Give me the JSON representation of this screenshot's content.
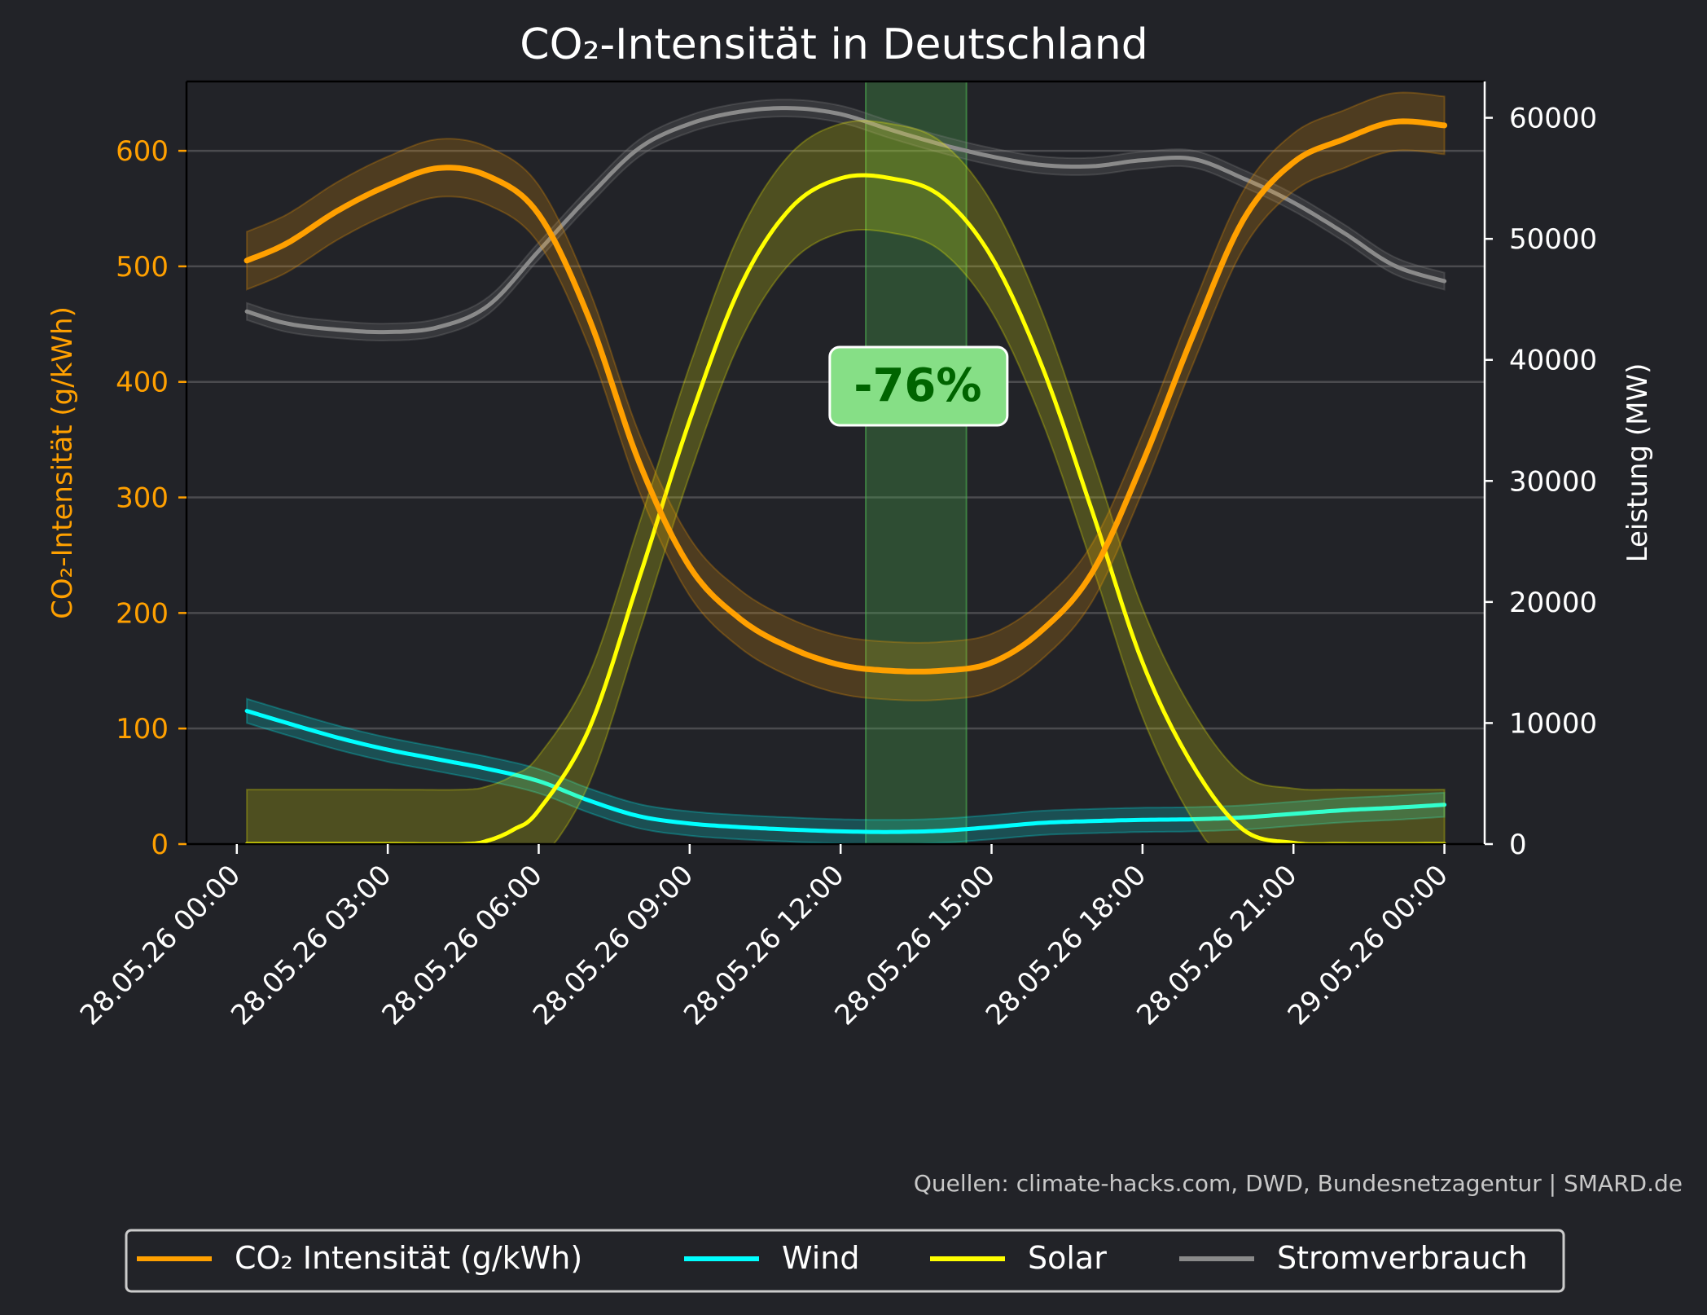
{
  "colors": {
    "background": "#222328",
    "co2": "#ffa000",
    "wind": "#00ffff",
    "solar": "#ffff00",
    "consumption": "#8a8a8a",
    "highlight": "#4caf50",
    "badge_fill": "#86df86",
    "badge_text": "#006400",
    "text": "#ffffff",
    "source_text": "#c8c8c8"
  },
  "chart_data": {
    "type": "line",
    "title": "CO₂-Intensität in Deutschland",
    "ylabel_left": "CO₂-Intensität (g/kWh)",
    "ylabel_right": "Leistung (MW)",
    "ylim_left": [
      0,
      660
    ],
    "ylim_right": [
      0,
      63000
    ],
    "xlim_hours": [
      -1.0,
      24.8
    ],
    "yticks_left": [
      0,
      100,
      200,
      300,
      400,
      500,
      600
    ],
    "yticks_right": [
      0,
      10000,
      20000,
      30000,
      40000,
      50000,
      60000
    ],
    "xticks": [
      {
        "hour": 0,
        "label": "28.05.26 00:00"
      },
      {
        "hour": 3,
        "label": "28.05.26 03:00"
      },
      {
        "hour": 6,
        "label": "28.05.26 06:00"
      },
      {
        "hour": 9,
        "label": "28.05.26 09:00"
      },
      {
        "hour": 12,
        "label": "28.05.26 12:00"
      },
      {
        "hour": 15,
        "label": "28.05.26 15:00"
      },
      {
        "hour": 18,
        "label": "28.05.26 18:00"
      },
      {
        "hour": 21,
        "label": "28.05.26 21:00"
      },
      {
        "hour": 24,
        "label": "29.05.26 00:00"
      }
    ],
    "grid": true,
    "legend": "bottom-center",
    "highlight_band_hours": [
      12.5,
      14.5
    ],
    "annotation": "-76%",
    "source": "Quellen: climate-hacks.com, DWD, Bundesnetzagentur | SMARD.de",
    "series": [
      {
        "name": "CO₂ Intensität (g/kWh)",
        "axis": "left",
        "color_key": "co2",
        "band": 25,
        "points": [
          [
            0.2,
            505
          ],
          [
            1,
            520
          ],
          [
            2,
            548
          ],
          [
            3,
            570
          ],
          [
            4,
            585
          ],
          [
            5,
            578
          ],
          [
            6,
            545
          ],
          [
            7,
            455
          ],
          [
            8,
            330
          ],
          [
            9,
            240
          ],
          [
            10,
            195
          ],
          [
            11,
            170
          ],
          [
            12,
            155
          ],
          [
            13,
            150
          ],
          [
            14,
            150
          ],
          [
            15,
            157
          ],
          [
            16,
            185
          ],
          [
            17,
            235
          ],
          [
            18,
            330
          ],
          [
            19,
            440
          ],
          [
            20,
            540
          ],
          [
            21,
            590
          ],
          [
            22,
            610
          ],
          [
            23,
            625
          ],
          [
            24,
            622
          ]
        ]
      },
      {
        "name": "Wind",
        "axis": "right",
        "color_key": "wind",
        "band": 1000,
        "points": [
          [
            0.2,
            11000
          ],
          [
            1,
            10000
          ],
          [
            2,
            8800
          ],
          [
            3,
            7800
          ],
          [
            4,
            7000
          ],
          [
            5,
            6200
          ],
          [
            6,
            5200
          ],
          [
            7,
            3600
          ],
          [
            8,
            2300
          ],
          [
            9,
            1700
          ],
          [
            10,
            1400
          ],
          [
            11,
            1200
          ],
          [
            12,
            1050
          ],
          [
            13,
            1000
          ],
          [
            14,
            1100
          ],
          [
            15,
            1400
          ],
          [
            16,
            1750
          ],
          [
            17,
            1900
          ],
          [
            18,
            2000
          ],
          [
            19,
            2050
          ],
          [
            20,
            2200
          ],
          [
            21,
            2500
          ],
          [
            22,
            2800
          ],
          [
            23,
            3000
          ],
          [
            24,
            3250
          ]
        ]
      },
      {
        "name": "Solar",
        "axis": "right",
        "color_key": "solar",
        "band": 4500,
        "points": [
          [
            0.2,
            0
          ],
          [
            3,
            0
          ],
          [
            4.5,
            0
          ],
          [
            5,
            300
          ],
          [
            5.5,
            1200
          ],
          [
            6,
            2800
          ],
          [
            7,
            9500
          ],
          [
            8,
            22000
          ],
          [
            9,
            35000
          ],
          [
            10,
            46000
          ],
          [
            11,
            52500
          ],
          [
            12,
            55000
          ],
          [
            13,
            55000
          ],
          [
            14,
            53500
          ],
          [
            15,
            48500
          ],
          [
            16,
            39500
          ],
          [
            17,
            27500
          ],
          [
            18,
            15000
          ],
          [
            19,
            6500
          ],
          [
            20,
            1200
          ],
          [
            21,
            100
          ],
          [
            22,
            0
          ],
          [
            24,
            0
          ]
        ]
      },
      {
        "name": "Stromverbrauch",
        "axis": "right",
        "color_key": "consumption",
        "band": 700,
        "points": [
          [
            0.2,
            44000
          ],
          [
            1,
            43000
          ],
          [
            2,
            42500
          ],
          [
            3,
            42300
          ],
          [
            4,
            42700
          ],
          [
            5,
            44500
          ],
          [
            6,
            49000
          ],
          [
            7,
            53500
          ],
          [
            8,
            57500
          ],
          [
            9,
            59500
          ],
          [
            10,
            60500
          ],
          [
            11,
            60800
          ],
          [
            12,
            60300
          ],
          [
            13,
            59000
          ],
          [
            14,
            57800
          ],
          [
            15,
            56800
          ],
          [
            16,
            56100
          ],
          [
            17,
            56000
          ],
          [
            18,
            56500
          ],
          [
            19,
            56600
          ],
          [
            20,
            55000
          ],
          [
            21,
            53000
          ],
          [
            22,
            50500
          ],
          [
            23,
            47800
          ],
          [
            24,
            46500
          ]
        ]
      }
    ]
  }
}
